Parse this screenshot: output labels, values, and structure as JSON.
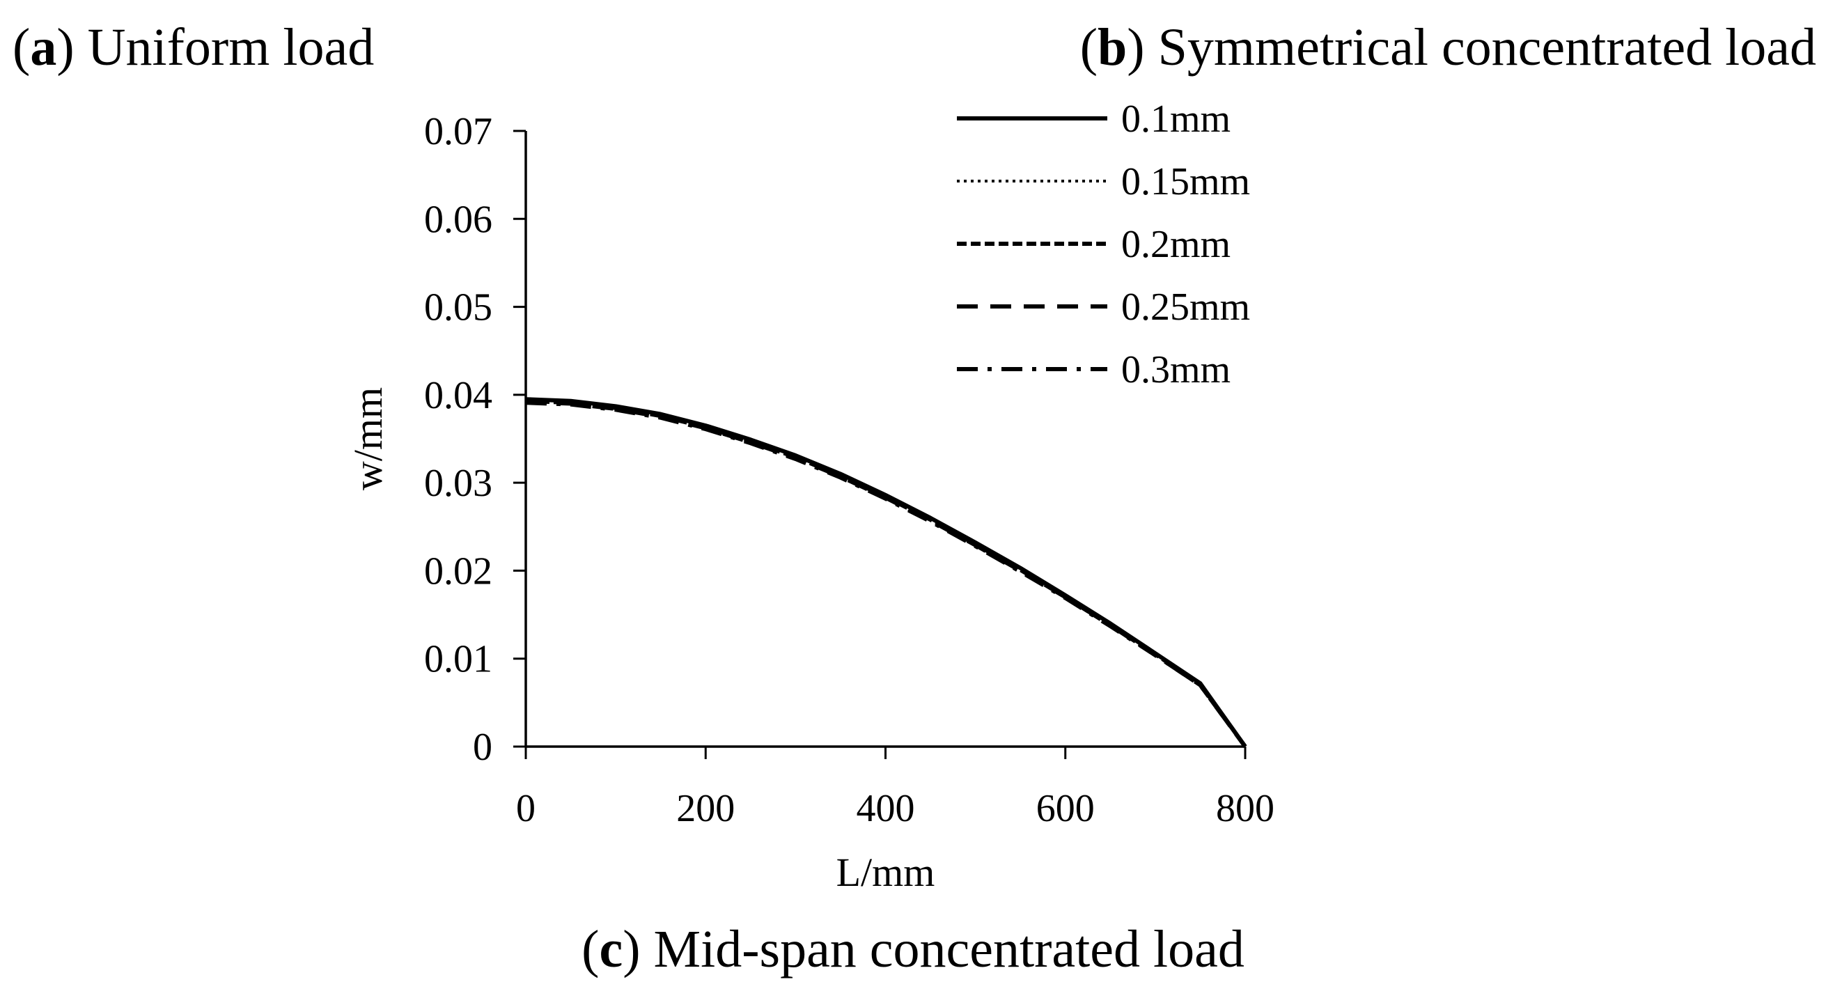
{
  "captions": {
    "a": {
      "letter": "a",
      "text": " Uniform load"
    },
    "b": {
      "letter": "b",
      "text": " Symmetrical concentrated load"
    },
    "c": {
      "letter": "c",
      "text": " Mid-span concentrated load"
    }
  },
  "chart_data": {
    "type": "line",
    "title": "",
    "xlabel": "L/mm",
    "ylabel": "w/mm",
    "xlim": [
      0,
      800
    ],
    "ylim": [
      0,
      0.07
    ],
    "xticks": [
      0,
      200,
      400,
      600,
      800
    ],
    "yticks": [
      0,
      0.01,
      0.02,
      0.03,
      0.04,
      0.05,
      0.06,
      0.07
    ],
    "ytick_labels": [
      "0",
      "0.01",
      "0.02",
      "0.03",
      "0.04",
      "0.05",
      "0.06",
      "0.07"
    ],
    "xtick_labels": [
      "0",
      "200",
      "400",
      "600",
      "800"
    ],
    "grid": false,
    "legend_position": "top-right",
    "x": [
      0,
      50,
      100,
      150,
      200,
      250,
      300,
      350,
      400,
      450,
      500,
      550,
      600,
      650,
      700,
      750,
      800
    ],
    "series": [
      {
        "name": "0.1mm",
        "style": "solid",
        "values": [
          0.0395,
          0.0393,
          0.0387,
          0.0378,
          0.0365,
          0.0349,
          0.0331,
          0.031,
          0.0286,
          0.026,
          0.0232,
          0.0203,
          0.0172,
          0.014,
          0.0106,
          0.0072,
          0.0
        ]
      },
      {
        "name": "0.15mm",
        "style": "dotted",
        "values": [
          0.0394,
          0.0392,
          0.0386,
          0.0377,
          0.0364,
          0.0348,
          0.033,
          0.0309,
          0.0285,
          0.0259,
          0.0231,
          0.0202,
          0.0171,
          0.0139,
          0.0105,
          0.0071,
          0.0
        ]
      },
      {
        "name": "0.2mm",
        "style": "short-dash",
        "values": [
          0.0393,
          0.0391,
          0.0385,
          0.0376,
          0.0363,
          0.0347,
          0.0329,
          0.0308,
          0.0284,
          0.0258,
          0.023,
          0.0201,
          0.017,
          0.0138,
          0.0105,
          0.0071,
          0.0
        ]
      },
      {
        "name": "0.25mm",
        "style": "long-dash",
        "values": [
          0.0392,
          0.039,
          0.0384,
          0.0375,
          0.0362,
          0.0346,
          0.0328,
          0.0307,
          0.0283,
          0.0257,
          0.0229,
          0.02,
          0.017,
          0.0138,
          0.0104,
          0.007,
          0.0
        ]
      },
      {
        "name": "0.3mm",
        "style": "dash-dot",
        "values": [
          0.0391,
          0.0389,
          0.0383,
          0.0374,
          0.0361,
          0.0345,
          0.0327,
          0.0306,
          0.0282,
          0.0256,
          0.0228,
          0.0199,
          0.0169,
          0.0137,
          0.0104,
          0.007,
          0.0
        ]
      }
    ]
  }
}
